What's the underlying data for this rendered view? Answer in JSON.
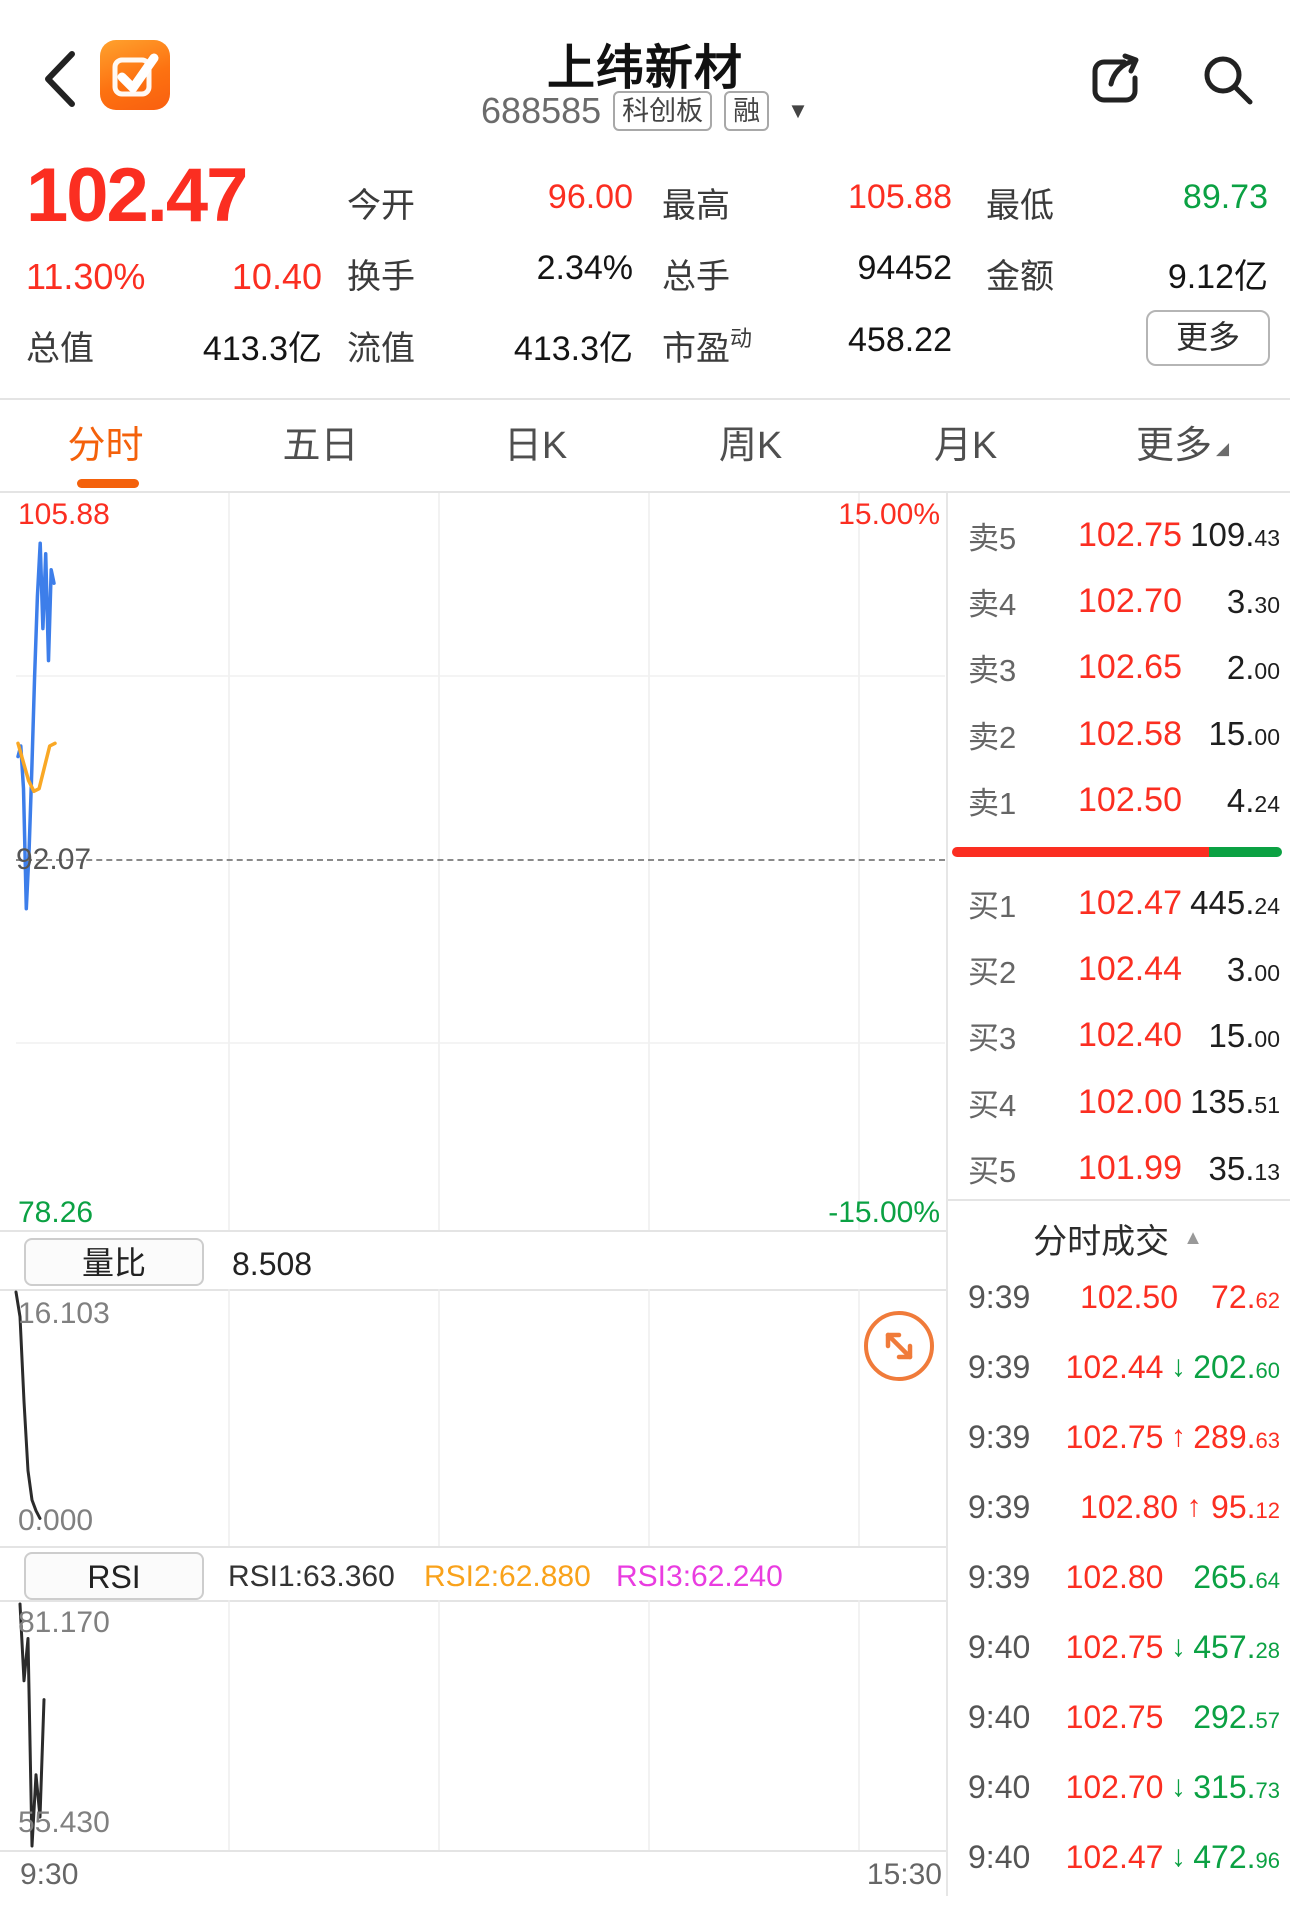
{
  "header": {
    "title": "上纬新材",
    "code": "688585",
    "board_badge": "科创板",
    "margin_badge": "融",
    "caret": "▼"
  },
  "quote": {
    "price": "102.47",
    "change_pct": "11.30%",
    "change_amt": "10.40",
    "open_label": "今开",
    "open": "96.00",
    "high_label": "最高",
    "high": "105.88",
    "low_label": "最低",
    "low": "89.73",
    "turnover_label": "换手",
    "turnover": "2.34%",
    "volume_label": "总手",
    "volume": "94452",
    "amount_label": "金额",
    "amount": "9.12亿",
    "mktcap_label": "总值",
    "mktcap": "413.3亿",
    "floatcap_label": "流值",
    "floatcap": "413.3亿",
    "pe_label": "市盈",
    "pe_tag": "动",
    "pe": "458.22",
    "more_label": "更多"
  },
  "tabs": [
    {
      "label": "分时",
      "active": true
    },
    {
      "label": "五日"
    },
    {
      "label": "日K"
    },
    {
      "label": "周K"
    },
    {
      "label": "月K"
    },
    {
      "label": "更多",
      "caret": "◢"
    }
  ],
  "chart": {
    "axis_high": "105.88",
    "axis_mid": "92.07",
    "axis_low": "78.26",
    "pct_high": "15.00%",
    "pct_low": "-15.00%"
  },
  "volume_panel": {
    "button": "量比",
    "value": "8.508",
    "axis_top": "16.103",
    "axis_bottom": "0.000"
  },
  "rsi_panel": {
    "button": "RSI",
    "rsi1": "RSI1:63.360",
    "rsi2": "RSI2:62.880",
    "rsi3": "RSI3:62.240",
    "axis_top": "81.170",
    "axis_bottom": "55.430"
  },
  "time_axis": {
    "start": "9:30",
    "end": "15:30"
  },
  "order_book": {
    "sell": [
      {
        "label": "卖5",
        "price": "102.75",
        "vol": "109.",
        "dec": "43"
      },
      {
        "label": "卖4",
        "price": "102.70",
        "vol": "3.",
        "dec": "30"
      },
      {
        "label": "卖3",
        "price": "102.65",
        "vol": "2.",
        "dec": "00"
      },
      {
        "label": "卖2",
        "price": "102.58",
        "vol": "15.",
        "dec": "00"
      },
      {
        "label": "卖1",
        "price": "102.50",
        "vol": "4.",
        "dec": "24"
      }
    ],
    "buy": [
      {
        "label": "买1",
        "price": "102.47",
        "vol": "445.",
        "dec": "24"
      },
      {
        "label": "买2",
        "price": "102.44",
        "vol": "3.",
        "dec": "00"
      },
      {
        "label": "买3",
        "price": "102.40",
        "vol": "15.",
        "dec": "00"
      },
      {
        "label": "买4",
        "price": "102.00",
        "vol": "135.",
        "dec": "51"
      },
      {
        "label": "买5",
        "price": "101.99",
        "vol": "35.",
        "dec": "13"
      }
    ],
    "ratio": {
      "red_pct": 78,
      "green_pct": 22
    }
  },
  "tape": {
    "title": "分时成交",
    "collapse_icon": "▲",
    "rows": [
      {
        "time": "9:39",
        "price": "102.50",
        "arrow": "",
        "dir": "red",
        "vol": "72.",
        "dec": "62"
      },
      {
        "time": "9:39",
        "price": "102.44",
        "arrow": "↓",
        "dir": "green",
        "vol": "202.",
        "dec": "60"
      },
      {
        "time": "9:39",
        "price": "102.75",
        "arrow": "↑",
        "dir": "red",
        "vol": "289.",
        "dec": "63"
      },
      {
        "time": "9:39",
        "price": "102.80",
        "arrow": "↑",
        "dir": "red",
        "vol": "95.",
        "dec": "12"
      },
      {
        "time": "9:39",
        "price": "102.80",
        "arrow": "",
        "dir": "green",
        "vol": "265.",
        "dec": "64"
      },
      {
        "time": "9:40",
        "price": "102.75",
        "arrow": "↓",
        "dir": "green",
        "vol": "457.",
        "dec": "28"
      },
      {
        "time": "9:40",
        "price": "102.75",
        "arrow": "",
        "dir": "green",
        "vol": "292.",
        "dec": "57"
      },
      {
        "time": "9:40",
        "price": "102.70",
        "arrow": "↓",
        "dir": "green",
        "vol": "315.",
        "dec": "73"
      },
      {
        "time": "9:40",
        "price": "102.47",
        "arrow": "↓",
        "dir": "green",
        "vol": "472.",
        "dec": "96"
      }
    ]
  },
  "chart_data": {
    "type": "line",
    "title": "分时 minute chart",
    "x_axis": [
      "9:30",
      "15:30"
    ],
    "price_axis": {
      "high": 105.88,
      "mid_prev_close": 92.07,
      "low": 78.26,
      "pct_range": [
        15,
        -15
      ]
    },
    "series": [
      {
        "name": "price",
        "color": "#3d7eea",
        "values": [
          96.0,
          96.4,
          94.8,
          90.3,
          92.5,
          95.5,
          99.0,
          102.0,
          104.0,
          100.8,
          103.6,
          99.6,
          103.0,
          102.5
        ]
      },
      {
        "name": "avg_price",
        "color": "#f9a825",
        "values": [
          96.5,
          95.8,
          95.1,
          94.7,
          94.8,
          95.6,
          96.4,
          96.5
        ]
      }
    ],
    "volume_ratio": {
      "name": "量比",
      "current": 8.508,
      "axis": [
        0,
        16.103
      ],
      "values": [
        16.1,
        14.5,
        9.0,
        4.5,
        2.6,
        1.9,
        1.4
      ]
    },
    "rsi": {
      "labels": [
        "RSI1:63.360",
        "RSI2:62.880",
        "RSI3:62.240"
      ],
      "axis": [
        55.43,
        81.17
      ],
      "values": [
        81.17,
        73.0,
        77.5,
        55.43,
        63.0,
        58.5,
        71.0
      ]
    }
  }
}
